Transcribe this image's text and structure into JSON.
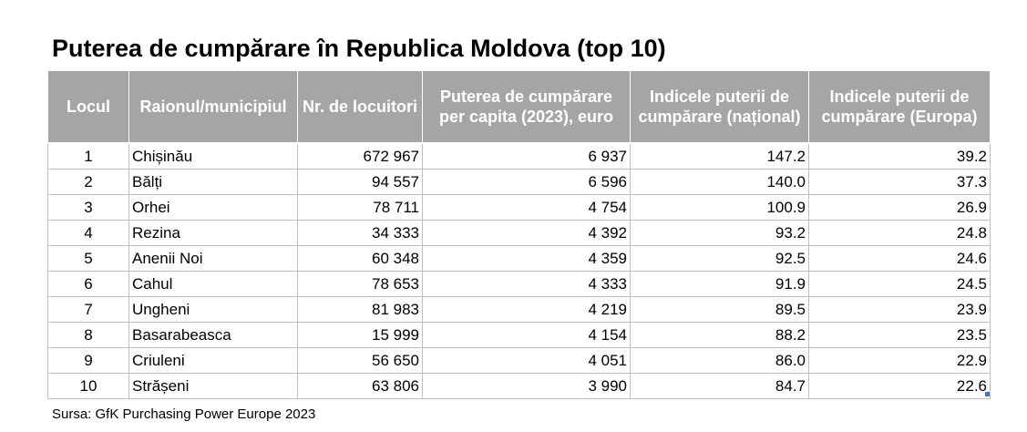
{
  "title": "Puterea de cumpărare în Republica Moldova (top 10)",
  "table": {
    "headers": [
      "Locul",
      "Raionul/municipiul",
      "Nr. de locuitori",
      "Puterea de cumpărare per capita (2023), euro",
      "Indicele puterii de cumpărare (național)",
      "Indicele puterii de cumpărare (Europa)"
    ],
    "rows": [
      [
        "1",
        "Chișinău",
        "672 967",
        "6 937",
        "147.2",
        "39.2"
      ],
      [
        "2",
        "Bălți",
        "94 557",
        "6 596",
        "140.0",
        "37.3"
      ],
      [
        "3",
        "Orhei",
        "78 711",
        "4 754",
        "100.9",
        "26.9"
      ],
      [
        "4",
        "Rezina",
        "34 333",
        "4 392",
        "93.2",
        "24.8"
      ],
      [
        "5",
        "Anenii Noi",
        "60 348",
        "4 359",
        "92.5",
        "24.6"
      ],
      [
        "6",
        "Cahul",
        "78 653",
        "4 333",
        "91.9",
        "24.5"
      ],
      [
        "7",
        "Ungheni",
        "81 983",
        "4 219",
        "89.5",
        "23.9"
      ],
      [
        "8",
        "Basarabeasca",
        "15 999",
        "4 154",
        "88.2",
        "23.5"
      ],
      [
        "9",
        "Criuleni",
        "56 650",
        "4 051",
        "86.0",
        "22.9"
      ],
      [
        "10",
        "Strășeni",
        "63 806",
        "3 990",
        "84.7",
        "22.6"
      ]
    ]
  },
  "source": "Sursa: GfK Purchasing Power Europe 2023",
  "colors": {
    "header_background": "#a5a5a5",
    "header_text": "#ffffff",
    "cell_border": "#bfbfbf"
  }
}
